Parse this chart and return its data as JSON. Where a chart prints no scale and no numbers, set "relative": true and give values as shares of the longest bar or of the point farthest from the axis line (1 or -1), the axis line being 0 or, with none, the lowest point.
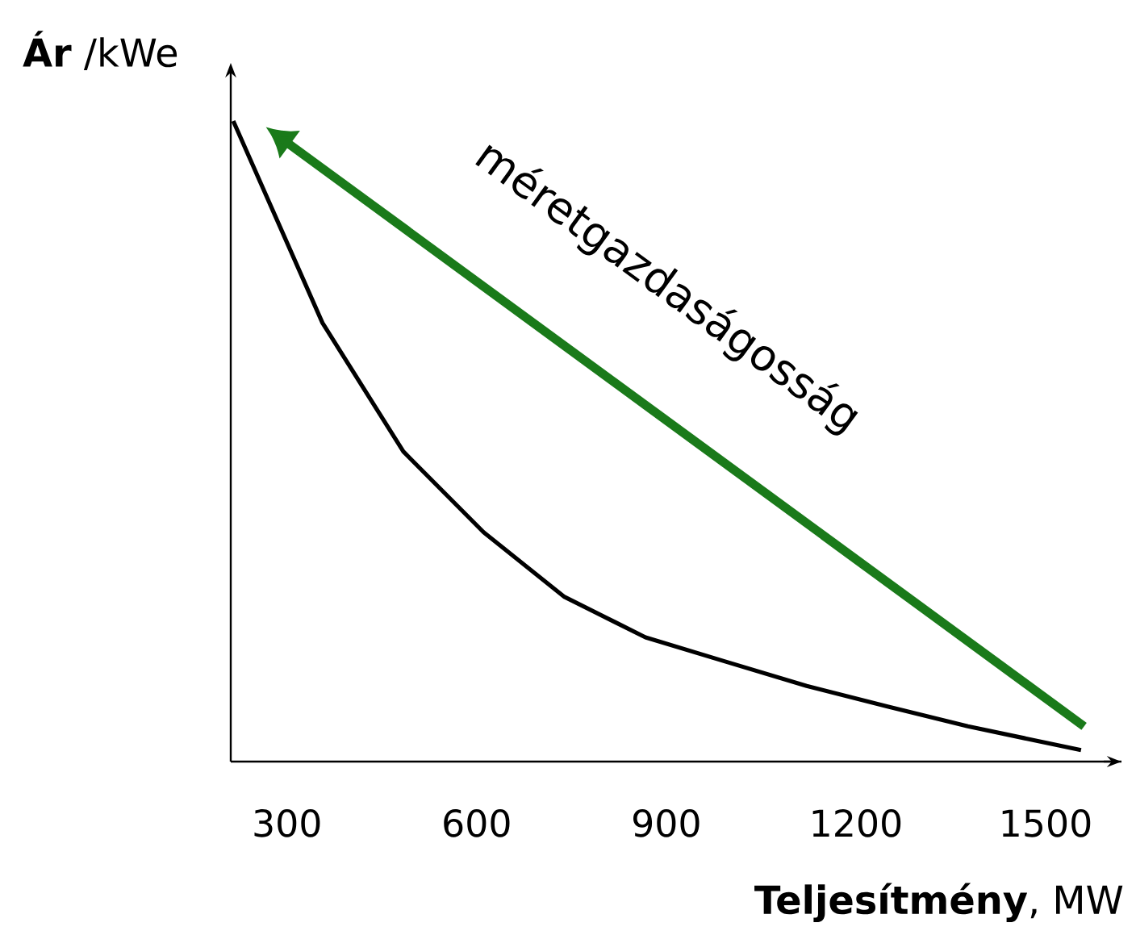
{
  "chart_data": {
    "type": "line",
    "relative": true,
    "xlabel": "**Teljesítmény**, MW",
    "ylabel": "**Ár** /kWe",
    "x": [
      215,
      356,
      484,
      611,
      739,
      867,
      994,
      1122,
      1250,
      1377,
      1556
    ],
    "values": [
      1,
      0.685,
      0.484,
      0.358,
      0.257,
      0.194,
      0.156,
      0.118,
      0.086,
      0.055,
      0.018
    ],
    "color": "#000000",
    "marker": "none",
    "grid": false,
    "xlim": [
      211,
      1620
    ],
    "xticks": [
      300,
      600,
      900,
      1200,
      1500
    ],
    "annotations": [
      "méretgazdaságosság"
    ]
  }
}
